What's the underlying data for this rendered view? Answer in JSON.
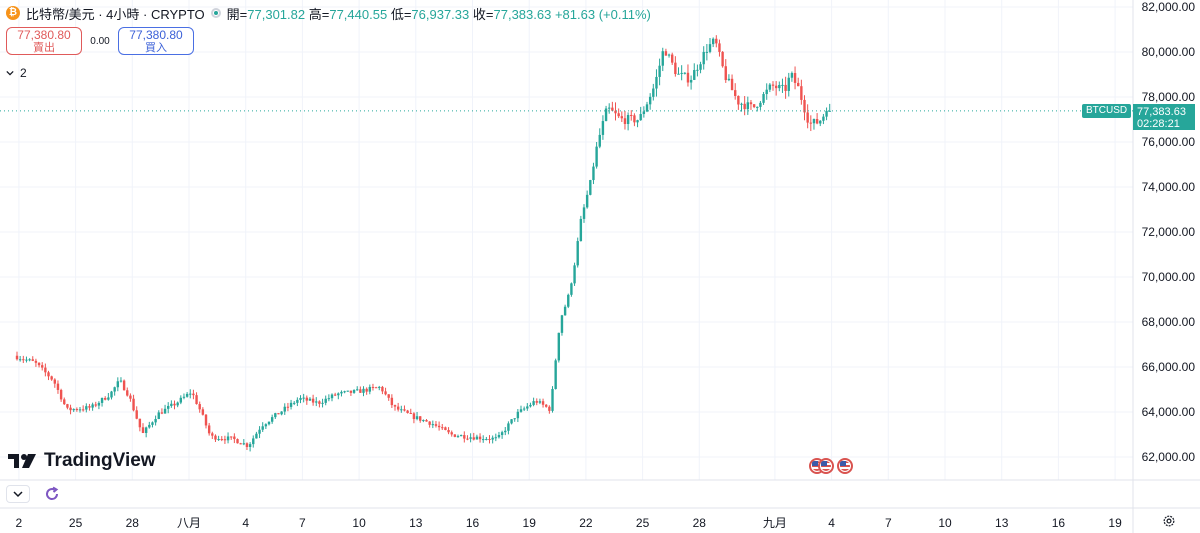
{
  "header": {
    "coin_icon": "bitcoin-icon",
    "symbol_title": "比特幣/美元 · 4小時 · CRYPTO",
    "market_status": "market-open-dot-icon",
    "open_label": "開",
    "open_value": "77,301.82",
    "high_label": "高",
    "high_value": "77,440.55",
    "low_label": "低",
    "low_value": "76,937.33",
    "close_label": "收",
    "close_value": "77,383.63",
    "change": "+81.63 (+0.11%)"
  },
  "trade": {
    "sell_price": "77,380.80",
    "sell_label": "賣出",
    "spread": "0.00",
    "buy_price": "77,380.80",
    "buy_label": "買入"
  },
  "indicators_toggle": {
    "count": "2",
    "icon": "chevron-down-icon"
  },
  "brand": {
    "logo_text": "TradingView",
    "icon": "tradingview-logo-icon"
  },
  "bottom_tools": {
    "collapse_icon": "chevron-down-icon",
    "replay_icon": "refresh-icon"
  },
  "last_price": {
    "symbol": "BTCUSD",
    "price": "77,383.63",
    "countdown": "02:28:21"
  },
  "settings_icon": "gear-icon",
  "colors": {
    "up": "#26a69a",
    "down": "#ef5350",
    "grid": "#f0f3fa",
    "price_line": "#26a69a"
  },
  "chart_data": {
    "type": "candlestick",
    "timeframe": "4h",
    "y_axis_labels": [
      "82,000.00",
      "80,000.00",
      "78,000.00",
      "76,000.00",
      "74,000.00",
      "72,000.00",
      "70,000.00",
      "68,000.00",
      "66,000.00",
      "64,000.00",
      "62,000.00"
    ],
    "y_axis_values": [
      82000,
      80000,
      78000,
      76000,
      74000,
      72000,
      70000,
      68000,
      66000,
      64000,
      62000
    ],
    "ylim": [
      61500,
      82200
    ],
    "x_tick_labels": [
      "2",
      "25",
      "28",
      "八月",
      "4",
      "7",
      "10",
      "13",
      "16",
      "19",
      "22",
      "25",
      "28",
      "九月",
      "4",
      "7",
      "10",
      "13",
      "16",
      "19"
    ],
    "x_tick_days": [
      -9,
      -6,
      -3,
      0,
      3,
      6,
      9,
      12,
      15,
      18,
      21,
      24,
      27,
      31,
      34,
      37,
      40,
      43,
      46,
      49
    ],
    "last_price": 77383.63,
    "anchors": [
      {
        "day": -9.1,
        "price": 66500
      },
      {
        "day": -8.0,
        "price": 66200
      },
      {
        "day": -7.0,
        "price": 65400
      },
      {
        "day": -6.3,
        "price": 64100
      },
      {
        "day": -5.0,
        "price": 64200
      },
      {
        "day": -4.0,
        "price": 64800
      },
      {
        "day": -3.5,
        "price": 65400
      },
      {
        "day": -3.0,
        "price": 64700
      },
      {
        "day": -2.3,
        "price": 63000
      },
      {
        "day": -1.5,
        "price": 63900
      },
      {
        "day": -0.5,
        "price": 64400
      },
      {
        "day": 0.3,
        "price": 64900
      },
      {
        "day": 0.8,
        "price": 64000
      },
      {
        "day": 1.3,
        "price": 62900
      },
      {
        "day": 2.5,
        "price": 62800
      },
      {
        "day": 3.3,
        "price": 62500
      },
      {
        "day": 4.0,
        "price": 63400
      },
      {
        "day": 5.0,
        "price": 64000
      },
      {
        "day": 6.0,
        "price": 64600
      },
      {
        "day": 7.0,
        "price": 64400
      },
      {
        "day": 8.0,
        "price": 64800
      },
      {
        "day": 9.0,
        "price": 64900
      },
      {
        "day": 10.3,
        "price": 65100
      },
      {
        "day": 11.0,
        "price": 64200
      },
      {
        "day": 12.0,
        "price": 63800
      },
      {
        "day": 13.0,
        "price": 63500
      },
      {
        "day": 14.0,
        "price": 63000
      },
      {
        "day": 15.0,
        "price": 62900
      },
      {
        "day": 16.5,
        "price": 62800
      },
      {
        "day": 17.5,
        "price": 63900
      },
      {
        "day": 18.5,
        "price": 64500
      },
      {
        "day": 19.3,
        "price": 64100
      },
      {
        "day": 19.55,
        "price": 66200
      },
      {
        "day": 19.8,
        "price": 68100
      },
      {
        "day": 20.2,
        "price": 69000
      },
      {
        "day": 20.5,
        "price": 70200
      },
      {
        "day": 20.9,
        "price": 72500
      },
      {
        "day": 21.4,
        "price": 74200
      },
      {
        "day": 21.8,
        "price": 76000
      },
      {
        "day": 22.3,
        "price": 77500
      },
      {
        "day": 23.0,
        "price": 77000
      },
      {
        "day": 24.0,
        "price": 77000
      },
      {
        "day": 24.8,
        "price": 78500
      },
      {
        "day": 25.3,
        "price": 80200
      },
      {
        "day": 26.0,
        "price": 79000
      },
      {
        "day": 26.7,
        "price": 78800
      },
      {
        "day": 27.6,
        "price": 80200
      },
      {
        "day": 28.0,
        "price": 80500
      },
      {
        "day": 28.5,
        "price": 79000
      },
      {
        "day": 29.2,
        "price": 77800
      },
      {
        "day": 30.0,
        "price": 77500
      },
      {
        "day": 31.0,
        "price": 78500
      },
      {
        "day": 31.7,
        "price": 78300
      },
      {
        "day": 32.0,
        "price": 79000
      },
      {
        "day": 32.4,
        "price": 78400
      },
      {
        "day": 33.0,
        "price": 76800
      },
      {
        "day": 33.5,
        "price": 76900
      },
      {
        "day": 33.9,
        "price": 77383.63
      }
    ]
  }
}
